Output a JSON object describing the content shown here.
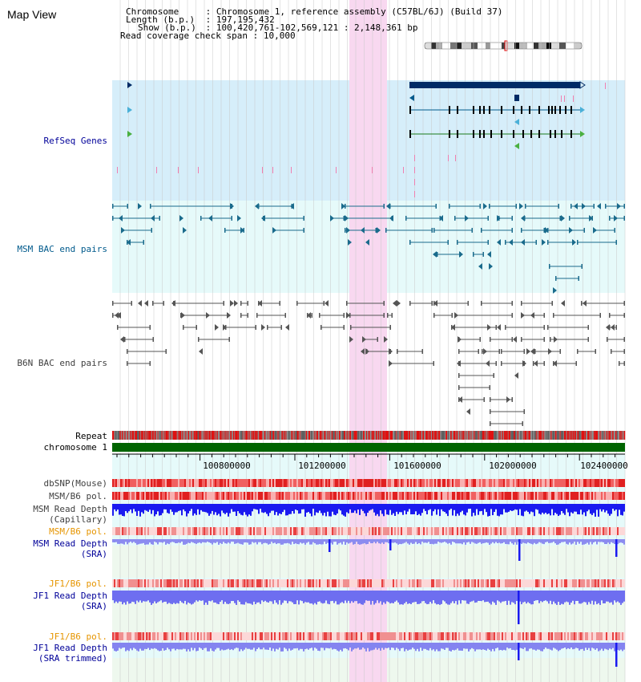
{
  "view_title": "Map View",
  "info": {
    "rows": [
      {
        "key": "Chromosome",
        "indent": 7,
        "value": "Chromosome 1, reference assembly (C57BL/6J) (Build 37)"
      },
      {
        "key": "Length (b.p.)",
        "indent": 7,
        "value": "197,195,432"
      },
      {
        "key": "Show (b.p.)",
        "indent": 22,
        "value": "100,420,761-102,569,121 : 2,148,361 bp"
      },
      {
        "key": "Read coverage check span",
        "indent": 0,
        "value": "10,000"
      }
    ]
  },
  "tracks": [
    {
      "id": "refseq",
      "label": "RefSeq Genes",
      "color": "#000099"
    },
    {
      "id": "msm-bac",
      "label": "MSM BAC end pairs",
      "color": "#005a8c"
    },
    {
      "id": "b6n-bac",
      "label": "B6N BAC end pairs",
      "color": "#404040"
    },
    {
      "id": "repeat",
      "label": "Repeat",
      "color": "#000000"
    },
    {
      "id": "chromosome",
      "label": "chromosome 1",
      "color": "#000000"
    },
    {
      "id": "dbsnp",
      "label": "dbSNP(Mouse)",
      "color": "#404040"
    },
    {
      "id": "msm-b6-pol",
      "label": "MSM/B6 pol.",
      "color": "#404040"
    },
    {
      "id": "msm-depth-cap",
      "label": "MSM Read Depth\n(Capillary)",
      "color": "#404040"
    },
    {
      "id": "msm-b6-pol-2",
      "label": "MSM/B6 pol.",
      "color": "#e69500"
    },
    {
      "id": "msm-depth-sra",
      "label": "MSM Read Depth\n(SRA)",
      "color": "#000099"
    },
    {
      "id": "jf1-b6-pol",
      "label": "JF1/B6 pol.",
      "color": "#e69500"
    },
    {
      "id": "jf1-depth-sra",
      "label": "JF1 Read Depth\n(SRA)",
      "color": "#000099"
    },
    {
      "id": "jf1-b6-pol-2",
      "label": "JF1/B6 pol.",
      "color": "#e69500"
    },
    {
      "id": "jf1-depth-trim",
      "label": "JF1 Read Depth\n(SRA trimmed)",
      "color": "#000099"
    }
  ],
  "ruler": {
    "ticks": [
      "100800000",
      "101200000",
      "101600000",
      "102000000",
      "102400000"
    ]
  },
  "colors": {
    "refseq_bg": "#d6eefa",
    "bac_bg": "#e6fafa",
    "depth_bg": "#eef8ee",
    "highlight": "#f8d8f0",
    "gene_strand": "#005a8c",
    "gene_dark": "#002b66",
    "gene_green": "#1a7a1a",
    "msm_pair": "#1a6b8c",
    "b6n_pair": "#555555",
    "repeat_red": "#e01010",
    "chrom_green": "#006400",
    "snp_red": "#e84040",
    "depth_blue": "#1a1af0",
    "depth_light": "#8c8cf0",
    "grid": "#c8c8c8"
  }
}
